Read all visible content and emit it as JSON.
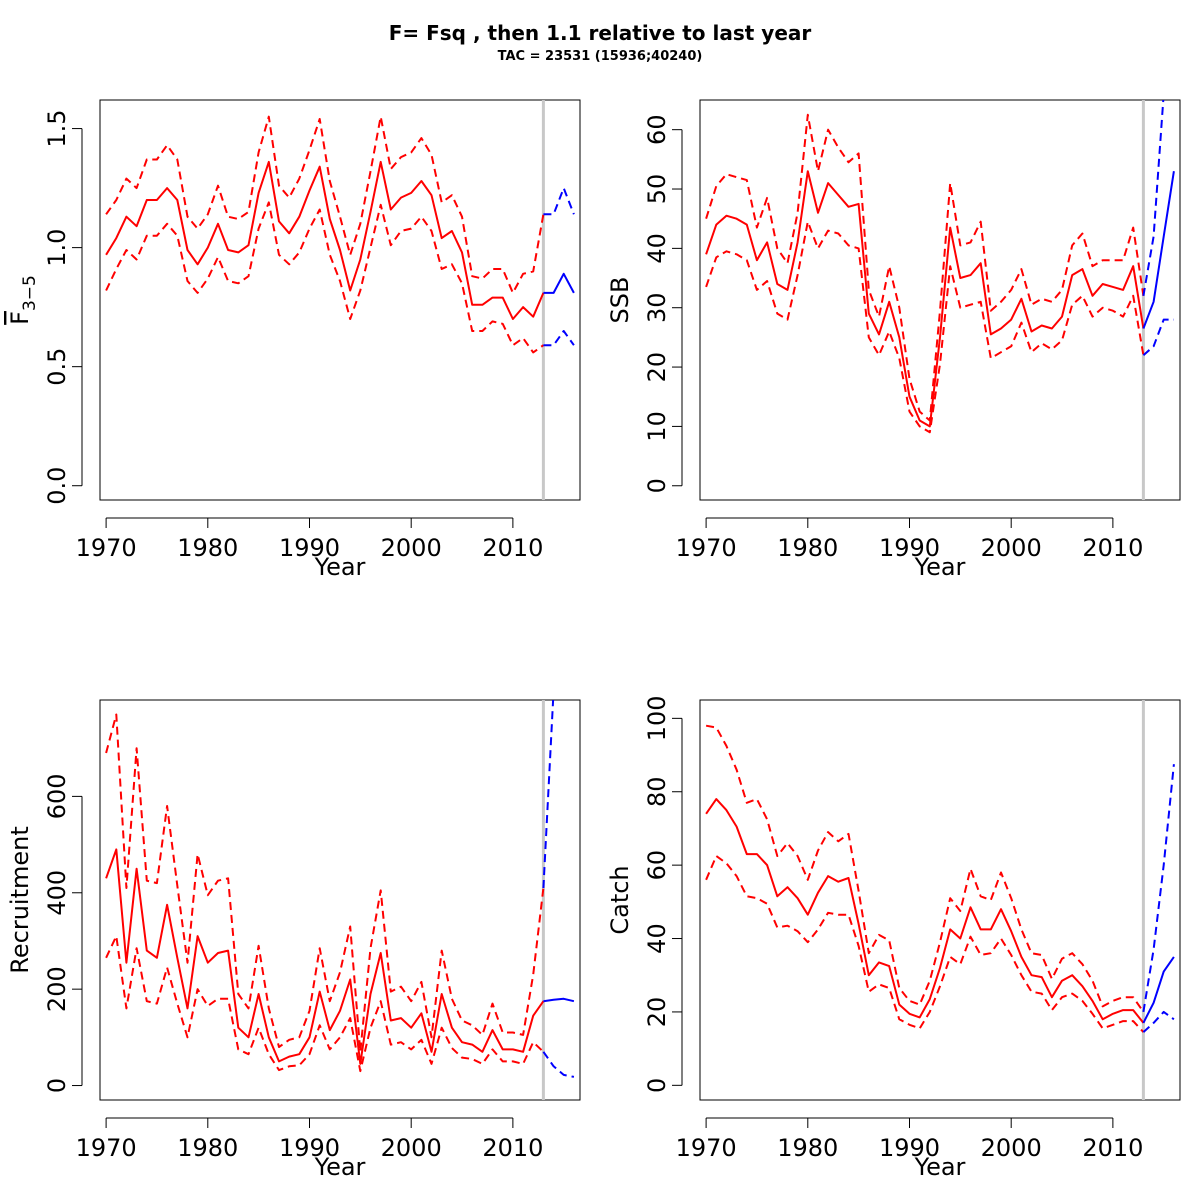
{
  "figure": {
    "title": "F= Fsq , then 1.1  relative to last year",
    "subtitle": "TAC = 23531 (15936;40240)"
  },
  "colors": {
    "historical": "#ff0000",
    "forecast": "#0000ff",
    "divider": "#c8c8c8",
    "axis": "#000000"
  },
  "chart_data": [
    {
      "type": "line",
      "panel": "fbar",
      "ylabel_main": "F",
      "ylabel_sub": "3−5",
      "xlabel": "Year",
      "xlim": [
        1969.4,
        2016.6
      ],
      "ylim": [
        -0.06,
        1.62
      ],
      "xticks": [
        1970,
        1980,
        1990,
        2000,
        2010
      ],
      "yticks": [
        "0.0",
        "0.5",
        "1.0",
        "1.5"
      ],
      "divider_x": 2013,
      "historical_years": [
        1970,
        1971,
        1972,
        1973,
        1974,
        1975,
        1976,
        1977,
        1978,
        1979,
        1980,
        1981,
        1982,
        1983,
        1984,
        1985,
        1986,
        1987,
        1988,
        1989,
        1990,
        1991,
        1992,
        1993,
        1994,
        1995,
        1996,
        1997,
        1998,
        1999,
        2000,
        2001,
        2002,
        2003,
        2004,
        2005,
        2006,
        2007,
        2008,
        2009,
        2010,
        2011,
        2012,
        2013
      ],
      "series": [
        {
          "role": "historical-median",
          "values": [
            0.97,
            1.04,
            1.13,
            1.09,
            1.2,
            1.2,
            1.25,
            1.2,
            0.99,
            0.93,
            1.0,
            1.1,
            0.99,
            0.98,
            1.01,
            1.23,
            1.36,
            1.11,
            1.06,
            1.13,
            1.24,
            1.34,
            1.12,
            0.99,
            0.82,
            0.95,
            1.15,
            1.36,
            1.16,
            1.21,
            1.23,
            1.28,
            1.22,
            1.04,
            1.07,
            0.98,
            0.76,
            0.76,
            0.79,
            0.79,
            0.7,
            0.75,
            0.71,
            0.81
          ]
        },
        {
          "role": "historical-upper",
          "values": [
            1.14,
            1.2,
            1.29,
            1.25,
            1.37,
            1.37,
            1.43,
            1.37,
            1.13,
            1.08,
            1.14,
            1.26,
            1.13,
            1.12,
            1.15,
            1.4,
            1.55,
            1.26,
            1.21,
            1.29,
            1.41,
            1.54,
            1.28,
            1.13,
            0.97,
            1.1,
            1.32,
            1.55,
            1.33,
            1.38,
            1.4,
            1.46,
            1.39,
            1.19,
            1.22,
            1.13,
            0.88,
            0.87,
            0.91,
            0.91,
            0.81,
            0.89,
            0.9,
            1.14
          ]
        },
        {
          "role": "historical-lower",
          "values": [
            0.82,
            0.91,
            0.99,
            0.95,
            1.05,
            1.05,
            1.1,
            1.05,
            0.86,
            0.81,
            0.87,
            0.96,
            0.86,
            0.85,
            0.88,
            1.08,
            1.19,
            0.97,
            0.93,
            0.98,
            1.08,
            1.16,
            0.97,
            0.86,
            0.7,
            0.82,
            1.0,
            1.18,
            1.01,
            1.07,
            1.08,
            1.13,
            1.07,
            0.91,
            0.93,
            0.85,
            0.65,
            0.65,
            0.69,
            0.68,
            0.59,
            0.62,
            0.56,
            0.59
          ]
        }
      ],
      "forecast_years": [
        2013,
        2014,
        2015,
        2016
      ],
      "forecast_series": [
        {
          "role": "forecast-median",
          "values": [
            0.81,
            0.81,
            0.89,
            0.81
          ]
        },
        {
          "role": "forecast-upper",
          "values": [
            1.14,
            1.14,
            1.25,
            1.14
          ]
        },
        {
          "role": "forecast-lower",
          "values": [
            0.59,
            0.59,
            0.65,
            0.59
          ]
        }
      ]
    },
    {
      "type": "line",
      "panel": "ssb",
      "ylabel": "SSB",
      "xlabel": "Year",
      "xlim": [
        1969.4,
        2016.6
      ],
      "ylim": [
        -2.4,
        65
      ],
      "xticks": [
        1970,
        1980,
        1990,
        2000,
        2010
      ],
      "yticks": [
        "0",
        "10",
        "20",
        "30",
        "40",
        "50",
        "60"
      ],
      "divider_x": 2013,
      "historical_years": [
        1970,
        1971,
        1972,
        1973,
        1974,
        1975,
        1976,
        1977,
        1978,
        1979,
        1980,
        1981,
        1982,
        1983,
        1984,
        1985,
        1986,
        1987,
        1988,
        1989,
        1990,
        1991,
        1992,
        1993,
        1994,
        1995,
        1996,
        1997,
        1998,
        1999,
        2000,
        2001,
        2002,
        2003,
        2004,
        2005,
        2006,
        2007,
        2008,
        2009,
        2010,
        2011,
        2012,
        2013
      ],
      "series": [
        {
          "role": "historical-median",
          "values": [
            39,
            44,
            45.5,
            45,
            44,
            38,
            41,
            34,
            33,
            41,
            53,
            46,
            51,
            49,
            47,
            47.5,
            29,
            25.5,
            31,
            25,
            15,
            11,
            10,
            25,
            43.5,
            35,
            35.5,
            37.5,
            25.5,
            26.5,
            28,
            31.5,
            26,
            27,
            26.5,
            28.5,
            35.5,
            36.5,
            32,
            34,
            33.5,
            33,
            37,
            26.5
          ]
        },
        {
          "role": "historical-upper",
          "values": [
            45,
            50.5,
            52.5,
            52,
            51.5,
            43.5,
            48.5,
            40,
            37.5,
            46,
            62.5,
            53,
            60,
            57,
            54.5,
            56,
            33,
            28.5,
            37,
            30,
            18,
            12.5,
            11,
            29.5,
            51,
            40.5,
            41,
            44.5,
            29.5,
            31,
            33,
            36.5,
            30.5,
            31.5,
            31,
            33,
            40.5,
            42.5,
            37,
            38,
            38,
            38,
            43.5,
            32
          ]
        },
        {
          "role": "historical-lower",
          "values": [
            33.5,
            38.5,
            39.5,
            39,
            38,
            33,
            34.5,
            29,
            28,
            35.5,
            44.5,
            40,
            43,
            42.5,
            40.5,
            40,
            25,
            22,
            26,
            21.5,
            12.5,
            10,
            9,
            20.5,
            37,
            30,
            30.5,
            31,
            21.5,
            22.5,
            23.5,
            27.5,
            22.5,
            24,
            23,
            24.5,
            30.5,
            32,
            28.5,
            30,
            29.5,
            28.5,
            32,
            22
          ]
        }
      ],
      "forecast_years": [
        2013,
        2014,
        2015,
        2016
      ],
      "forecast_series": [
        {
          "role": "forecast-median",
          "values": [
            26.5,
            31,
            42,
            53
          ]
        },
        {
          "role": "forecast-upper",
          "values": [
            32,
            42,
            66,
            66
          ]
        },
        {
          "role": "forecast-lower",
          "values": [
            22,
            23.5,
            28,
            28
          ]
        }
      ]
    },
    {
      "type": "line",
      "panel": "recruitment",
      "ylabel": "Recruitment",
      "xlabel": "Year",
      "xlim": [
        1969.4,
        2016.6
      ],
      "ylim": [
        -30,
        800
      ],
      "xticks": [
        1970,
        1980,
        1990,
        2000,
        2010
      ],
      "yticks": [
        "0",
        "200",
        "400",
        "600"
      ],
      "divider_x": 2013,
      "historical_years": [
        1970,
        1971,
        1972,
        1973,
        1974,
        1975,
        1976,
        1977,
        1978,
        1979,
        1980,
        1981,
        1982,
        1983,
        1984,
        1985,
        1986,
        1987,
        1988,
        1989,
        1990,
        1991,
        1992,
        1993,
        1994,
        1995,
        1996,
        1997,
        1998,
        1999,
        2000,
        2001,
        2002,
        2003,
        2004,
        2005,
        2006,
        2007,
        2008,
        2009,
        2010,
        2011,
        2012,
        2013
      ],
      "series": [
        {
          "role": "historical-median",
          "values": [
            430,
            490,
            255,
            450,
            280,
            265,
            375,
            265,
            160,
            310,
            255,
            275,
            280,
            120,
            100,
            190,
            100,
            50,
            60,
            65,
            100,
            195,
            115,
            155,
            220,
            45,
            190,
            275,
            135,
            140,
            120,
            150,
            70,
            190,
            120,
            90,
            85,
            70,
            115,
            75,
            75,
            70,
            145,
            175
          ]
        },
        {
          "role": "historical-upper",
          "values": [
            690,
            770,
            410,
            700,
            425,
            420,
            580,
            415,
            255,
            480,
            395,
            425,
            430,
            190,
            160,
            290,
            160,
            80,
            95,
            100,
            155,
            285,
            175,
            235,
            330,
            70,
            285,
            405,
            195,
            205,
            175,
            215,
            100,
            280,
            180,
            135,
            125,
            105,
            170,
            110,
            110,
            105,
            230,
            410
          ]
        },
        {
          "role": "historical-lower",
          "values": [
            265,
            310,
            160,
            285,
            175,
            170,
            245,
            170,
            100,
            200,
            165,
            180,
            180,
            75,
            65,
            120,
            65,
            32,
            40,
            42,
            65,
            125,
            75,
            100,
            140,
            30,
            120,
            175,
            85,
            90,
            75,
            95,
            45,
            120,
            78,
            58,
            55,
            45,
            75,
            50,
            50,
            45,
            90,
            70
          ]
        }
      ],
      "forecast_years": [
        2013,
        2014,
        2015,
        2016
      ],
      "forecast_series": [
        {
          "role": "forecast-median",
          "values": [
            175,
            178,
            180,
            175
          ]
        },
        {
          "role": "forecast-upper",
          "values": [
            410,
            820,
            820,
            820
          ]
        },
        {
          "role": "forecast-lower",
          "values": [
            70,
            40,
            22,
            18
          ]
        }
      ]
    },
    {
      "type": "line",
      "panel": "catch",
      "ylabel": "Catch",
      "xlabel": "Year",
      "xlim": [
        1969.4,
        2016.6
      ],
      "ylim": [
        -4,
        105
      ],
      "xticks": [
        1970,
        1980,
        1990,
        2000,
        2010
      ],
      "yticks": [
        "0",
        "20",
        "40",
        "60",
        "80",
        "100"
      ],
      "divider_x": 2013,
      "historical_years": [
        1970,
        1971,
        1972,
        1973,
        1974,
        1975,
        1976,
        1977,
        1978,
        1979,
        1980,
        1981,
        1982,
        1983,
        1984,
        1985,
        1986,
        1987,
        1988,
        1989,
        1990,
        1991,
        1992,
        1993,
        1994,
        1995,
        1996,
        1997,
        1998,
        1999,
        2000,
        2001,
        2002,
        2003,
        2004,
        2005,
        2006,
        2007,
        2008,
        2009,
        2010,
        2011,
        2012,
        2013
      ],
      "series": [
        {
          "role": "historical-median",
          "values": [
            74,
            78,
            75,
            70.5,
            63,
            63,
            60,
            51.5,
            54,
            51,
            46.5,
            52.5,
            57,
            55.5,
            56.5,
            44,
            30,
            33.5,
            32.5,
            22,
            19.5,
            18.5,
            23.5,
            32,
            42.5,
            40,
            48.5,
            42.5,
            42.5,
            48,
            42,
            35,
            30,
            29.5,
            24,
            28.5,
            30,
            27,
            23,
            18,
            19.5,
            20.5,
            20.5,
            17
          ]
        },
        {
          "role": "historical-upper",
          "values": [
            98,
            97.5,
            92.5,
            86,
            77,
            78,
            72.5,
            62.5,
            66,
            62.5,
            56,
            64,
            69,
            66.5,
            68.5,
            53,
            36,
            41,
            39.5,
            26.5,
            23,
            22,
            28.5,
            39,
            51,
            47.5,
            59,
            51.5,
            50.5,
            58,
            51,
            42.5,
            36,
            35.5,
            29,
            34.5,
            36,
            33,
            28.5,
            21.5,
            23,
            24,
            24,
            20
          ]
        },
        {
          "role": "historical-lower",
          "values": [
            56,
            62.5,
            60.5,
            57,
            51.5,
            51,
            49.5,
            43,
            43.5,
            42,
            39,
            42.5,
            47,
            46.5,
            46.5,
            38,
            25.5,
            27.5,
            26.5,
            18,
            16.5,
            15.5,
            20,
            27,
            35,
            33,
            40.5,
            35.5,
            36,
            40,
            35.5,
            30,
            25.5,
            25,
            20.5,
            24,
            25,
            23,
            19.5,
            15.5,
            16.5,
            17.5,
            17.5,
            14.5
          ]
        }
      ],
      "forecast_years": [
        2013,
        2014,
        2015,
        2016
      ],
      "forecast_series": [
        {
          "role": "forecast-median",
          "values": [
            17,
            22.5,
            31,
            35
          ]
        },
        {
          "role": "forecast-upper",
          "values": [
            20,
            37,
            60,
            87.5
          ]
        },
        {
          "role": "forecast-lower",
          "values": [
            14.5,
            17,
            20,
            18
          ]
        }
      ]
    }
  ]
}
